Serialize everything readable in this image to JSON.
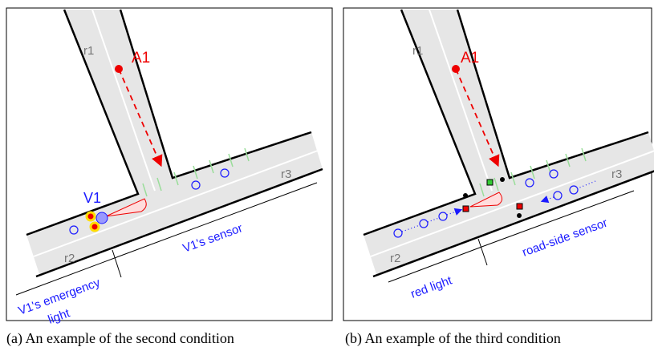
{
  "panels": [
    {
      "caption": "(a) An example of the second condition",
      "labels": {
        "road1": "r1",
        "agent": "A1",
        "road3": "r3",
        "vehicle": "V1",
        "road2": "r2",
        "sensor": "V1's sensor",
        "light_line1": "V1's emergency",
        "light_line2": "light"
      }
    },
    {
      "caption": "(b) An example of the third condition",
      "labels": {
        "road1": "r1",
        "agent": "A1",
        "road3": "r3",
        "road2": "r2",
        "light": "red light",
        "sensor": "road-side sensor"
      }
    }
  ]
}
